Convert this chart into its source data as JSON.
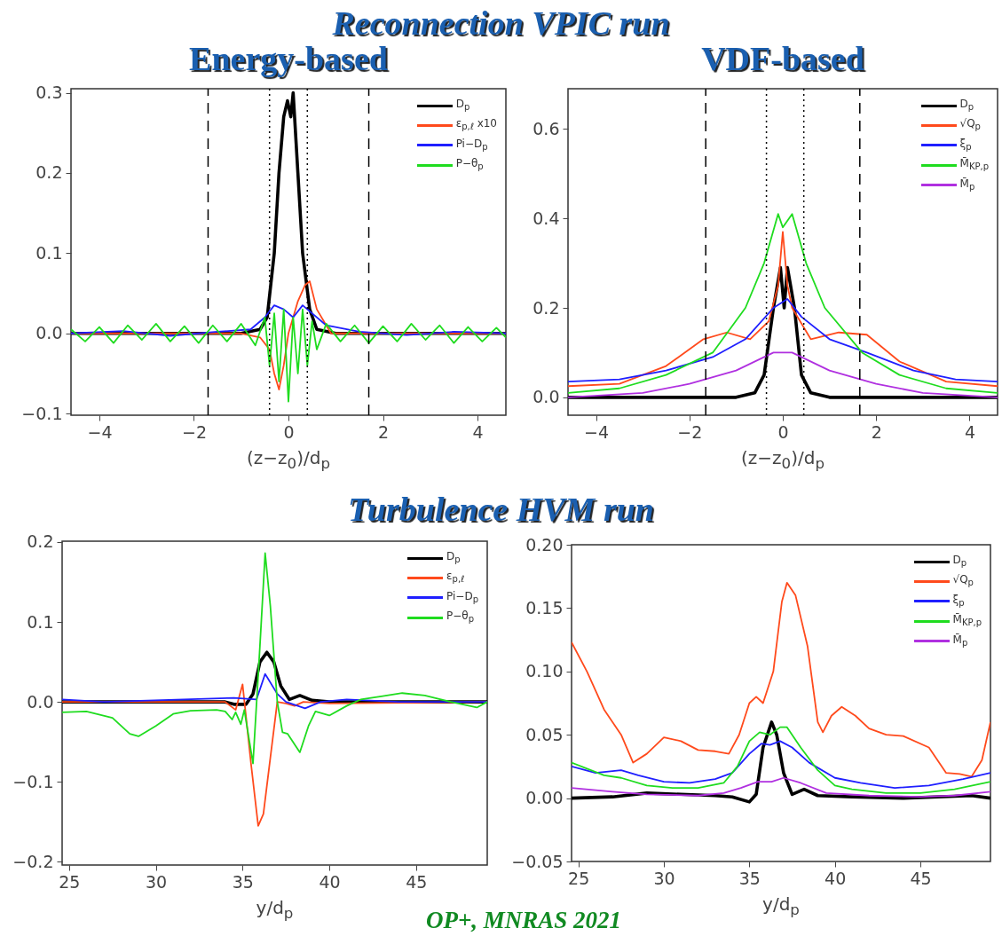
{
  "chart_data": [
    {
      "type": "line",
      "title": "Energy-based",
      "annotations": [
        "Reconnection VPIC run"
      ],
      "xlabel": "(z−z$_{0}$)/d$_{p}$",
      "xlim": [
        -4.6,
        4.6
      ],
      "xticks": [
        -4,
        -2,
        0,
        2,
        4
      ],
      "ylim": [
        -0.102,
        0.305
      ],
      "yticks": [
        -0.1,
        {
          "value": 0,
          "label": "0.0"
        },
        0.1,
        0.2,
        0.3
      ],
      "grid": false,
      "legend": "top right",
      "ref_lines": [
        {
          "axis": "x",
          "value": -1.7,
          "line_style": "dashed",
          "color": "#000000"
        },
        {
          "axis": "x",
          "value": 1.7,
          "line_style": "dashed",
          "color": "#000000"
        },
        {
          "axis": "x",
          "value": -0.4,
          "line_style": "dotted",
          "color": "#000000"
        },
        {
          "axis": "x",
          "value": 0.4,
          "line_style": "dotted",
          "color": "#000000"
        }
      ],
      "series": [
        {
          "name": "D$_{p}$",
          "color": "#000000",
          "x": [
            -4.6,
            -1,
            -0.6,
            -0.45,
            -0.3,
            -0.2,
            -0.1,
            -0.02,
            0.05,
            0.1,
            0.2,
            0.3,
            0.45,
            0.6,
            1,
            4.6
          ],
          "values": [
            0,
            0,
            0.005,
            0.02,
            0.1,
            0.2,
            0.27,
            0.29,
            0.27,
            0.3,
            0.2,
            0.1,
            0.03,
            0.005,
            0,
            0
          ]
        },
        {
          "name": "ε$_{p,ℓ}$ x10",
          "color": "#ff4a1c",
          "x": [
            -4.6,
            -1,
            -0.6,
            -0.4,
            -0.3,
            -0.2,
            -0.1,
            0,
            0.2,
            0.35,
            0.45,
            0.6,
            0.9,
            4.6
          ],
          "values": [
            0,
            0,
            -0.005,
            -0.02,
            -0.05,
            -0.07,
            -0.04,
            0,
            0.04,
            0.06,
            0.065,
            0.03,
            0,
            0
          ]
        },
        {
          "name": "Pi−D$_{p}$",
          "color": "#1f1fff",
          "x": [
            -4.6,
            -3.5,
            -2.5,
            -1.5,
            -0.8,
            -0.5,
            -0.3,
            -0.1,
            0.1,
            0.3,
            0.5,
            0.8,
            1.5,
            2.5,
            3.5,
            4.6
          ],
          "values": [
            0,
            0.003,
            -0.003,
            0.002,
            0.005,
            0.02,
            0.035,
            0.03,
            0.02,
            0.035,
            0.025,
            0.01,
            0.002,
            -0.002,
            0.002,
            0
          ]
        },
        {
          "name": "P−θ$_{p}$",
          "color": "#1fdc1f",
          "x": [
            -4.6,
            -4.3,
            -4.0,
            -3.7,
            -3.4,
            -3.1,
            -2.8,
            -2.5,
            -2.2,
            -1.9,
            -1.6,
            -1.3,
            -1.0,
            -0.7,
            -0.5,
            -0.4,
            -0.3,
            -0.2,
            -0.1,
            0,
            0.1,
            0.2,
            0.3,
            0.4,
            0.5,
            0.6,
            0.8,
            1.1,
            1.4,
            1.7,
            2.0,
            2.3,
            2.6,
            2.9,
            3.2,
            3.5,
            3.8,
            4.1,
            4.4,
            4.6
          ],
          "values": [
            0.005,
            -0.01,
            0.008,
            -0.012,
            0.01,
            -0.008,
            0.012,
            -0.01,
            0.009,
            -0.012,
            0.01,
            -0.01,
            0.012,
            -0.015,
            0.02,
            -0.04,
            0.025,
            -0.06,
            0.03,
            -0.085,
            0.02,
            -0.05,
            0.03,
            -0.04,
            0.015,
            -0.02,
            0.012,
            -0.01,
            0.01,
            -0.012,
            0.009,
            -0.01,
            0.012,
            -0.008,
            0.01,
            -0.012,
            0.008,
            -0.01,
            0.007,
            -0.005
          ]
        }
      ]
    },
    {
      "type": "line",
      "title": "VDF-based",
      "xlabel": "(z−z$_{0}$)/d$_{p}$",
      "xlim": [
        -4.6,
        4.6
      ],
      "xticks": [
        -4,
        -2,
        0,
        2,
        4
      ],
      "ylim": [
        -0.04,
        0.69
      ],
      "yticks": [
        {
          "value": 0,
          "label": "0.0"
        },
        0.2,
        0.4,
        0.6
      ],
      "grid": false,
      "legend": "top right",
      "ref_lines": [
        {
          "axis": "x",
          "value": -1.65,
          "line_style": "dashed",
          "color": "#000000"
        },
        {
          "axis": "x",
          "value": 1.65,
          "line_style": "dashed",
          "color": "#000000"
        },
        {
          "axis": "x",
          "value": -0.35,
          "line_style": "dotted",
          "color": "#000000"
        },
        {
          "axis": "x",
          "value": 0.45,
          "line_style": "dotted",
          "color": "#000000"
        }
      ],
      "series": [
        {
          "name": "D$_{p}$",
          "color": "#000000",
          "x": [
            -4.6,
            -1,
            -0.6,
            -0.4,
            -0.2,
            -0.05,
            0.03,
            0.1,
            0.25,
            0.4,
            0.6,
            1,
            4.6
          ],
          "values": [
            0,
            0,
            0.01,
            0.05,
            0.2,
            0.29,
            0.2,
            0.29,
            0.2,
            0.05,
            0.01,
            0,
            0
          ]
        },
        {
          "name": "√Q$_{p}$",
          "color": "#ff4a1c",
          "x": [
            -4.6,
            -3.5,
            -2.5,
            -1.7,
            -1.2,
            -0.7,
            -0.3,
            -0.1,
            0,
            0.1,
            0.2,
            0.6,
            1.2,
            1.8,
            2.5,
            3.5,
            4.6
          ],
          "values": [
            0.025,
            0.03,
            0.07,
            0.13,
            0.145,
            0.13,
            0.17,
            0.25,
            0.37,
            0.25,
            0.2,
            0.13,
            0.145,
            0.14,
            0.08,
            0.035,
            0.025
          ]
        },
        {
          "name": "ξ$_{p}$",
          "color": "#1f1fff",
          "x": [
            -4.6,
            -3.5,
            -2.5,
            -1.5,
            -0.8,
            -0.2,
            0.1,
            0.4,
            1,
            1.8,
            2.8,
            3.7,
            4.6
          ],
          "values": [
            0.035,
            0.04,
            0.06,
            0.09,
            0.13,
            0.2,
            0.22,
            0.18,
            0.13,
            0.1,
            0.06,
            0.04,
            0.035
          ]
        },
        {
          "name": "M̄$_{KP,p}$",
          "color": "#1fdc1f",
          "x": [
            -4.6,
            -3.5,
            -2.5,
            -1.5,
            -0.8,
            -0.4,
            -0.1,
            0,
            0.2,
            0.5,
            0.9,
            1.7,
            2.5,
            3.5,
            4.6
          ],
          "values": [
            0.01,
            0.02,
            0.05,
            0.1,
            0.2,
            0.3,
            0.41,
            0.38,
            0.41,
            0.3,
            0.2,
            0.1,
            0.05,
            0.02,
            0.01
          ]
        },
        {
          "name": "M̄$_{p}$",
          "color": "#b030e0",
          "x": [
            -4.6,
            -3,
            -2,
            -1,
            -0.2,
            0.2,
            1,
            2,
            3,
            4.6
          ],
          "values": [
            0,
            0.01,
            0.03,
            0.06,
            0.1,
            0.1,
            0.06,
            0.03,
            0.01,
            0
          ]
        }
      ]
    },
    {
      "type": "line",
      "annotations": [
        "Turbulence HVM run"
      ],
      "xlabel": "y/d$_{p}$",
      "xlim": [
        24.6,
        49.1
      ],
      "xticks": [
        25,
        30,
        35,
        40,
        45
      ],
      "ylim": [
        -0.204,
        0.201
      ],
      "yticks": [
        -0.2,
        -0.1,
        {
          "value": 0,
          "label": "0.0"
        },
        0.1,
        0.2
      ],
      "grid": false,
      "legend": "top right",
      "series": [
        {
          "name": "D$_{p}$",
          "color": "#000000",
          "x": [
            24.6,
            34,
            34.5,
            35.2,
            35.6,
            36,
            36.4,
            36.8,
            37.2,
            37.7,
            38.3,
            39,
            40,
            49.1
          ],
          "values": [
            0,
            0,
            -0.003,
            -0.003,
            0.01,
            0.05,
            0.062,
            0.05,
            0.02,
            0.003,
            0.008,
            0.002,
            0,
            0
          ]
        },
        {
          "name": "ε$_{p,ℓ}$",
          "color": "#ff4a1c",
          "x": [
            24.6,
            34,
            34.6,
            35,
            35.5,
            35.9,
            36.2,
            36.6,
            37,
            37.5,
            38,
            38.5,
            40,
            49.1
          ],
          "values": [
            0,
            0,
            -0.01,
            0.022,
            -0.08,
            -0.155,
            -0.14,
            -0.07,
            0,
            -0.002,
            -0.005,
            0,
            -0.002,
            0
          ]
        },
        {
          "name": "Pi−D$_{p}$",
          "color": "#1f1fff",
          "x": [
            24.6,
            27,
            34.5,
            35.8,
            36.3,
            37,
            37.5,
            38.6,
            39.5,
            41,
            44,
            49.1
          ],
          "values": [
            0.003,
            0,
            0.005,
            0.003,
            0.035,
            0.01,
            0,
            -0.008,
            0,
            0.003,
            0,
            0
          ]
        },
        {
          "name": "P−θ$_{p}$",
          "color": "#1fdc1f",
          "x": [
            24.6,
            26,
            27.5,
            28.5,
            29,
            30,
            31,
            32,
            33.5,
            34,
            34.4,
            34.6,
            34.9,
            35.1,
            35.6,
            36,
            36.3,
            36.6,
            37,
            37.3,
            37.6,
            38.3,
            38.8,
            39.2,
            40,
            41,
            41.8,
            43,
            44.2,
            45.5,
            47,
            48.5,
            49.1
          ],
          "values": [
            -0.013,
            -0.012,
            -0.02,
            -0.04,
            -0.043,
            -0.03,
            -0.015,
            -0.011,
            -0.01,
            -0.012,
            -0.022,
            -0.013,
            -0.028,
            -0.01,
            -0.077,
            0.07,
            0.186,
            0.12,
            0,
            -0.038,
            -0.04,
            -0.063,
            -0.03,
            -0.012,
            -0.017,
            -0.005,
            0.003,
            0.007,
            0.011,
            0.008,
            0,
            -0.007,
            0
          ]
        }
      ]
    },
    {
      "type": "line",
      "annotations": [
        "OP+, MNRAS 2021"
      ],
      "xlabel": "y/d$_{p}$",
      "xlim": [
        24.6,
        49.1
      ],
      "xticks": [
        25,
        30,
        35,
        40,
        45
      ],
      "ylim": [
        -0.05,
        0.2
      ],
      "yticks": [
        {
          "value": -0.05,
          "label": "−0.05"
        },
        {
          "value": 0,
          "label": "0.00"
        },
        0.05,
        {
          "value": 0.1,
          "label": "0.10"
        },
        0.15,
        {
          "value": 0.2,
          "label": "0.20"
        }
      ],
      "grid": false,
      "legend": "top right",
      "series": [
        {
          "name": "D$_{p}$",
          "color": "#000000",
          "x": [
            24.6,
            27,
            29,
            31,
            33,
            34,
            35,
            35.4,
            35.8,
            36.3,
            36.6,
            37,
            37.5,
            38.2,
            39,
            41,
            44,
            48,
            49.1
          ],
          "values": [
            0,
            0.001,
            0.004,
            0.003,
            0.002,
            0.001,
            -0.003,
            0.003,
            0.04,
            0.06,
            0.05,
            0.02,
            0.003,
            0.007,
            0.002,
            0.001,
            0,
            0.002,
            0
          ]
        },
        {
          "name": "√Q$_{p}$",
          "color": "#ff4a1c",
          "x": [
            24.6,
            25.5,
            26.5,
            27.5,
            28.2,
            29,
            30,
            31,
            32,
            33,
            33.8,
            34.4,
            35,
            35.4,
            35.8,
            36.4,
            36.9,
            37.2,
            37.7,
            38.4,
            39,
            39.3,
            39.8,
            40.4,
            41.2,
            42,
            43,
            44,
            45.5,
            46.5,
            47.3,
            48,
            48.6,
            49.1
          ],
          "values": [
            0.123,
            0.1,
            0.07,
            0.05,
            0.028,
            0.035,
            0.048,
            0.045,
            0.038,
            0.037,
            0.035,
            0.05,
            0.075,
            0.08,
            0.075,
            0.1,
            0.155,
            0.17,
            0.16,
            0.12,
            0.06,
            0.052,
            0.065,
            0.072,
            0.065,
            0.055,
            0.05,
            0.049,
            0.04,
            0.02,
            0.019,
            0.017,
            0.03,
            0.06
          ]
        },
        {
          "name": "ξ$_{p}$",
          "color": "#1f1fff",
          "x": [
            24.6,
            26,
            27.5,
            28.5,
            30,
            31.5,
            33,
            34,
            35,
            35.7,
            36.2,
            36.8,
            37.5,
            38.5,
            40,
            41.5,
            43.5,
            45.5,
            47.5,
            49.1
          ],
          "values": [
            0.025,
            0.02,
            0.022,
            0.018,
            0.013,
            0.012,
            0.015,
            0.02,
            0.035,
            0.043,
            0.042,
            0.045,
            0.04,
            0.028,
            0.016,
            0.012,
            0.008,
            0.01,
            0.015,
            0.02
          ]
        },
        {
          "name": "M̄$_{KP,p}$",
          "color": "#1fdc1f",
          "x": [
            24.6,
            26.5,
            27.5,
            29,
            30.5,
            32,
            33.5,
            34.3,
            35,
            35.6,
            36.2,
            36.8,
            37.2,
            38,
            39,
            40,
            41,
            43,
            45,
            47,
            49.1
          ],
          "values": [
            0.028,
            0.018,
            0.016,
            0.01,
            0.008,
            0.008,
            0.012,
            0.025,
            0.045,
            0.052,
            0.05,
            0.056,
            0.056,
            0.04,
            0.022,
            0.01,
            0.007,
            0.004,
            0.004,
            0.007,
            0.013
          ]
        },
        {
          "name": "M̄$_{p}$",
          "color": "#b030e0",
          "x": [
            24.6,
            27,
            29,
            32,
            33.5,
            34.5,
            35.5,
            36.3,
            37,
            38,
            39.5,
            42,
            45,
            47,
            49.1
          ],
          "values": [
            0.008,
            0.005,
            0.003,
            0.002,
            0.004,
            0.008,
            0.013,
            0.013,
            0.016,
            0.012,
            0.004,
            0.002,
            0.001,
            0.002,
            0.005
          ]
        }
      ]
    }
  ]
}
